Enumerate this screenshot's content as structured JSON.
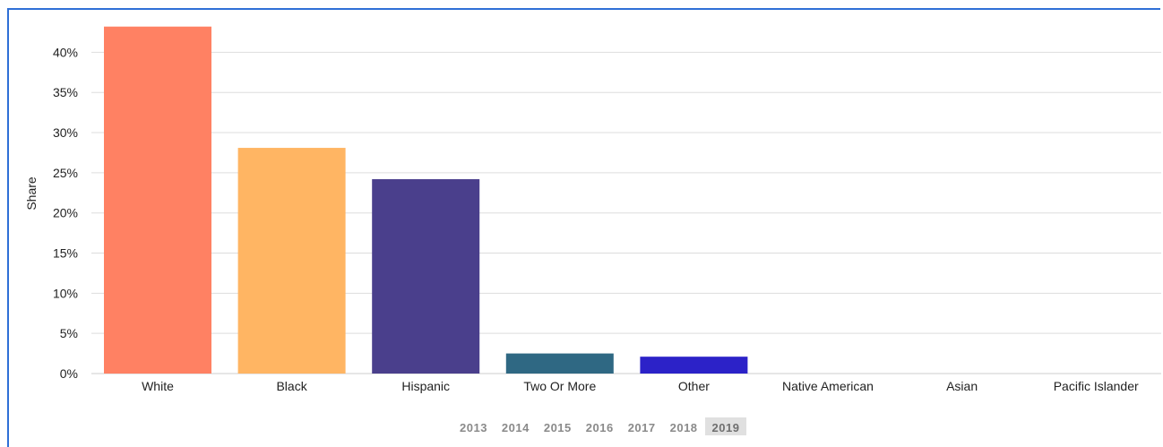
{
  "colors": {
    "accent_border": "#2f6fd6",
    "gridline": "#dddddd",
    "axis_text": "#222222"
  },
  "chart_data": {
    "type": "bar",
    "title": "",
    "xlabel": "",
    "ylabel": "Share",
    "ylim": [
      0,
      43.5
    ],
    "yticks": [
      "0%",
      "5%",
      "10%",
      "15%",
      "20%",
      "25%",
      "30%",
      "35%",
      "40%"
    ],
    "ytick_values": [
      0,
      5,
      10,
      15,
      20,
      25,
      30,
      35,
      40
    ],
    "grid": true,
    "categories": [
      "White",
      "Black",
      "Hispanic",
      "Two Or More",
      "Other",
      "Native American",
      "Asian",
      "Pacific Islander"
    ],
    "values": [
      43.2,
      28.1,
      24.2,
      2.5,
      2.1,
      0,
      0,
      0
    ],
    "bar_colors": [
      "#ff8163",
      "#ffb563",
      "#4a3f8c",
      "#2f6883",
      "#2c22c8",
      "#999999",
      "#999999",
      "#999999"
    ]
  },
  "year_selector": {
    "years": [
      "2013",
      "2014",
      "2015",
      "2016",
      "2017",
      "2018",
      "2019"
    ],
    "selected": "2019"
  }
}
